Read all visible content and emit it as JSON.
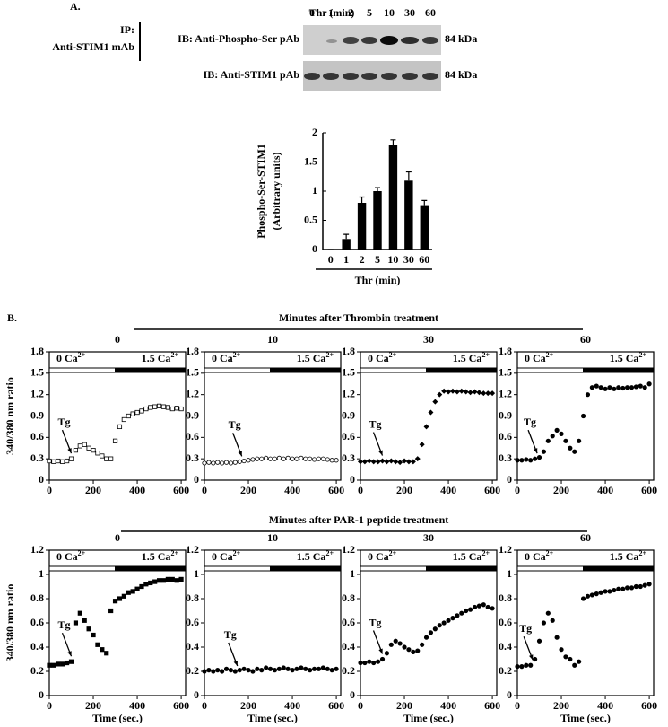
{
  "figure": {
    "panel_a": "A.",
    "panel_b": "B.",
    "blot": {
      "header": "Thr (min)",
      "lanes": [
        "0",
        "1",
        "2",
        "5",
        "10",
        "30",
        "60"
      ],
      "ip": "IP:",
      "ip_antibody": "Anti-STIM1 mAb",
      "ib_top": "IB: Anti-Phospho-Ser pAb",
      "ib_bottom": "IB: Anti-STIM1 pAb",
      "size_top": "84 kDa",
      "size_bottom": "84 kDa"
    },
    "group_headers": [
      "Minutes after Thrombin treatment",
      "Minutes after PAR-1 peptide treatment"
    ]
  },
  "chart_data": [
    {
      "type": "bar",
      "ylabel": [
        "Phospho-Ser-STIM1",
        "(Arbitrary units)"
      ],
      "xlabel": "Thr (min)",
      "categories": [
        "0",
        "1",
        "2",
        "5",
        "10",
        "30",
        "60"
      ],
      "values": [
        0,
        0.18,
        0.8,
        1.0,
        1.8,
        1.18,
        0.76
      ],
      "errors": [
        0,
        0.08,
        0.1,
        0.06,
        0.08,
        0.15,
        0.08
      ],
      "color": "#000000",
      "ylim": [
        0,
        2
      ],
      "yticks": [
        0,
        0.5,
        1,
        1.5,
        2
      ]
    },
    {
      "type": "scatter",
      "title": "0",
      "ylabel": "340/380 nm ratio",
      "marker": "square-open",
      "xlim": [
        0,
        620
      ],
      "xticks": [
        0,
        200,
        400,
        600
      ],
      "ylim": [
        0,
        1.8
      ],
      "yticks": [
        0,
        0.3,
        0.6,
        0.9,
        1.2,
        1.5,
        1.8
      ],
      "x": [
        0,
        20,
        40,
        60,
        80,
        100,
        120,
        140,
        160,
        180,
        200,
        220,
        240,
        260,
        280,
        300,
        320,
        340,
        360,
        380,
        400,
        420,
        440,
        460,
        480,
        500,
        520,
        540,
        560,
        580,
        600
      ],
      "values": [
        0.27,
        0.26,
        0.27,
        0.26,
        0.27,
        0.3,
        0.42,
        0.48,
        0.5,
        0.45,
        0.42,
        0.38,
        0.34,
        0.3,
        0.3,
        0.55,
        0.75,
        0.85,
        0.9,
        0.93,
        0.95,
        0.97,
        1.0,
        1.02,
        1.03,
        1.04,
        1.03,
        1.02,
        1.0,
        1.01,
        1.0
      ],
      "phases": [
        {
          "text": "0 Ca",
          "sup": "2+",
          "start": 0,
          "end": 300
        },
        {
          "text": "1.5 Ca",
          "sup": "2+",
          "start": 300,
          "end": 620
        }
      ],
      "tg": {
        "text": "Tg",
        "x": 100
      }
    },
    {
      "type": "scatter",
      "title": "10",
      "marker": "circle-open",
      "xlim": [
        0,
        620
      ],
      "xticks": [
        0,
        200,
        400,
        600
      ],
      "ylim": [
        0,
        1.8
      ],
      "yticks": [
        0,
        0.3,
        0.6,
        0.9,
        1.2,
        1.5,
        1.8
      ],
      "x": [
        0,
        20,
        40,
        60,
        80,
        100,
        120,
        140,
        160,
        180,
        200,
        220,
        240,
        260,
        280,
        300,
        320,
        340,
        360,
        380,
        400,
        420,
        440,
        460,
        480,
        500,
        520,
        540,
        560,
        580,
        600
      ],
      "values": [
        0.24,
        0.25,
        0.24,
        0.25,
        0.24,
        0.25,
        0.24,
        0.25,
        0.26,
        0.27,
        0.28,
        0.29,
        0.3,
        0.3,
        0.31,
        0.3,
        0.3,
        0.31,
        0.3,
        0.31,
        0.3,
        0.3,
        0.31,
        0.3,
        0.3,
        0.29,
        0.3,
        0.3,
        0.29,
        0.28,
        0.28
      ],
      "phases": [
        {
          "text": "0 Ca",
          "sup": "2+",
          "start": 0,
          "end": 300
        },
        {
          "text": "1.5 Ca",
          "sup": "2+",
          "start": 300,
          "end": 620
        }
      ],
      "tg": {
        "text": "Tg",
        "x": 170
      }
    },
    {
      "type": "scatter",
      "title": "30",
      "marker": "diamond",
      "xlim": [
        0,
        620
      ],
      "xticks": [
        0,
        200,
        400,
        600
      ],
      "ylim": [
        0,
        1.8
      ],
      "yticks": [
        0,
        0.3,
        0.6,
        0.9,
        1.2,
        1.5,
        1.8
      ],
      "x": [
        0,
        20,
        40,
        60,
        80,
        100,
        120,
        140,
        160,
        180,
        200,
        220,
        240,
        260,
        280,
        300,
        320,
        340,
        360,
        380,
        400,
        420,
        440,
        460,
        480,
        500,
        520,
        540,
        560,
        580,
        600
      ],
      "values": [
        0.26,
        0.26,
        0.27,
        0.26,
        0.26,
        0.27,
        0.26,
        0.27,
        0.26,
        0.25,
        0.27,
        0.26,
        0.26,
        0.3,
        0.5,
        0.75,
        0.95,
        1.1,
        1.2,
        1.25,
        1.24,
        1.25,
        1.24,
        1.25,
        1.24,
        1.23,
        1.24,
        1.23,
        1.22,
        1.22,
        1.22
      ],
      "phases": [
        {
          "text": "0 Ca",
          "sup": "2+",
          "start": 0,
          "end": 300
        },
        {
          "text": "1.5 Ca",
          "sup": "2+",
          "start": 300,
          "end": 620
        }
      ],
      "tg": {
        "text": "Tg",
        "x": 100
      }
    },
    {
      "type": "scatter",
      "title": "60",
      "marker": "circle",
      "xlim": [
        0,
        620
      ],
      "xticks": [
        0,
        200,
        400,
        600
      ],
      "ylim": [
        0,
        1.8
      ],
      "yticks": [
        0,
        0.3,
        0.6,
        0.9,
        1.2,
        1.5,
        1.8
      ],
      "x": [
        0,
        20,
        40,
        60,
        80,
        100,
        120,
        140,
        160,
        180,
        200,
        220,
        240,
        260,
        280,
        300,
        320,
        340,
        360,
        380,
        400,
        420,
        440,
        460,
        480,
        500,
        520,
        540,
        560,
        580,
        600
      ],
      "values": [
        0.28,
        0.28,
        0.29,
        0.28,
        0.3,
        0.32,
        0.4,
        0.55,
        0.62,
        0.7,
        0.65,
        0.55,
        0.45,
        0.4,
        0.55,
        0.9,
        1.2,
        1.3,
        1.32,
        1.3,
        1.28,
        1.3,
        1.28,
        1.3,
        1.29,
        1.3,
        1.3,
        1.31,
        1.32,
        1.3,
        1.35
      ],
      "phases": [
        {
          "text": "0 Ca",
          "sup": "2+",
          "start": 0,
          "end": 300
        },
        {
          "text": "1.5 Ca",
          "sup": "2+",
          "start": 300,
          "end": 620
        }
      ],
      "tg": {
        "text": "Tg",
        "x": 90
      }
    },
    {
      "type": "scatter",
      "title": "0",
      "ylabel": "340/380 nm ratio",
      "xlabel": "Time (sec.)",
      "marker": "square",
      "xlim": [
        0,
        620
      ],
      "xticks": [
        0,
        200,
        400,
        600
      ],
      "ylim": [
        0,
        1.2
      ],
      "yticks": [
        0,
        0.2,
        0.4,
        0.6,
        0.8,
        1,
        1.2
      ],
      "x": [
        0,
        20,
        40,
        60,
        80,
        100,
        120,
        140,
        160,
        180,
        200,
        220,
        240,
        260,
        280,
        300,
        320,
        340,
        360,
        380,
        400,
        420,
        440,
        460,
        480,
        500,
        520,
        540,
        560,
        580,
        600
      ],
      "values": [
        0.25,
        0.25,
        0.26,
        0.26,
        0.27,
        0.28,
        0.6,
        0.68,
        0.62,
        0.55,
        0.5,
        0.42,
        0.38,
        0.35,
        0.7,
        0.78,
        0.8,
        0.82,
        0.85,
        0.86,
        0.88,
        0.9,
        0.92,
        0.93,
        0.94,
        0.95,
        0.95,
        0.96,
        0.96,
        0.95,
        0.96
      ],
      "phases": [
        {
          "text": "0 Ca",
          "sup": "2+",
          "start": 0,
          "end": 300
        },
        {
          "text": "1.5 Ca",
          "sup": "2+",
          "start": 300,
          "end": 620
        }
      ],
      "tg": {
        "text": "Tg",
        "x": 100
      }
    },
    {
      "type": "scatter",
      "title": "10",
      "xlabel": "Time (sec.)",
      "marker": "circle",
      "xlim": [
        0,
        620
      ],
      "xticks": [
        0,
        200,
        400,
        600
      ],
      "ylim": [
        0,
        1.2
      ],
      "yticks": [
        0,
        0.2,
        0.4,
        0.6,
        0.8,
        1,
        1.2
      ],
      "x": [
        0,
        20,
        40,
        60,
        80,
        100,
        120,
        140,
        160,
        180,
        200,
        220,
        240,
        260,
        280,
        300,
        320,
        340,
        360,
        380,
        400,
        420,
        440,
        460,
        480,
        500,
        520,
        540,
        560,
        580,
        600
      ],
      "values": [
        0.2,
        0.21,
        0.2,
        0.21,
        0.2,
        0.22,
        0.21,
        0.2,
        0.21,
        0.22,
        0.21,
        0.2,
        0.22,
        0.21,
        0.23,
        0.22,
        0.21,
        0.22,
        0.23,
        0.22,
        0.21,
        0.22,
        0.23,
        0.22,
        0.21,
        0.22,
        0.22,
        0.23,
        0.22,
        0.21,
        0.22
      ],
      "phases": [
        {
          "text": "0 Ca",
          "sup": "2+",
          "start": 0,
          "end": 300
        },
        {
          "text": "1.5 Ca",
          "sup": "2+",
          "start": 300,
          "end": 620
        }
      ],
      "tg": {
        "text": "Tg",
        "x": 150
      }
    },
    {
      "type": "scatter",
      "title": "30",
      "xlabel": "Time (sec.)",
      "marker": "circle",
      "xlim": [
        0,
        620
      ],
      "xticks": [
        0,
        200,
        400,
        600
      ],
      "ylim": [
        0,
        1.2
      ],
      "yticks": [
        0,
        0.2,
        0.4,
        0.6,
        0.8,
        1,
        1.2
      ],
      "x": [
        0,
        20,
        40,
        60,
        80,
        100,
        120,
        140,
        160,
        180,
        200,
        220,
        240,
        260,
        280,
        300,
        320,
        340,
        360,
        380,
        400,
        420,
        440,
        460,
        480,
        500,
        520,
        540,
        560,
        580,
        600
      ],
      "values": [
        0.27,
        0.27,
        0.28,
        0.27,
        0.28,
        0.3,
        0.35,
        0.42,
        0.45,
        0.43,
        0.4,
        0.38,
        0.36,
        0.37,
        0.42,
        0.48,
        0.52,
        0.55,
        0.58,
        0.6,
        0.62,
        0.64,
        0.66,
        0.68,
        0.7,
        0.71,
        0.73,
        0.74,
        0.75,
        0.73,
        0.72
      ],
      "phases": [
        {
          "text": "0 Ca",
          "sup": "2+",
          "start": 0,
          "end": 300
        },
        {
          "text": "1.5 Ca",
          "sup": "2+",
          "start": 300,
          "end": 620
        }
      ],
      "tg": {
        "text": "Tg",
        "x": 100
      }
    },
    {
      "type": "scatter",
      "title": "60",
      "xlabel": "Time (sec.)",
      "marker": "circle",
      "xlim": [
        0,
        620
      ],
      "xticks": [
        0,
        200,
        400,
        600
      ],
      "ylim": [
        0,
        1.2
      ],
      "yticks": [
        0,
        0.2,
        0.4,
        0.6,
        0.8,
        1,
        1.2
      ],
      "x": [
        0,
        20,
        40,
        60,
        80,
        100,
        120,
        140,
        160,
        180,
        200,
        220,
        240,
        260,
        280,
        300,
        320,
        340,
        360,
        380,
        400,
        420,
        440,
        460,
        480,
        500,
        520,
        540,
        560,
        580,
        600
      ],
      "values": [
        0.24,
        0.24,
        0.25,
        0.25,
        0.3,
        0.45,
        0.6,
        0.68,
        0.62,
        0.48,
        0.38,
        0.32,
        0.3,
        0.25,
        0.28,
        0.8,
        0.82,
        0.83,
        0.84,
        0.85,
        0.86,
        0.86,
        0.87,
        0.88,
        0.88,
        0.89,
        0.89,
        0.9,
        0.9,
        0.91,
        0.92
      ],
      "phases": [
        {
          "text": "0 Ca",
          "sup": "2+",
          "start": 0,
          "end": 300
        },
        {
          "text": "1.5 Ca",
          "sup": "2+",
          "start": 300,
          "end": 620
        }
      ],
      "tg": {
        "text": "Tg",
        "x": 70
      }
    }
  ]
}
